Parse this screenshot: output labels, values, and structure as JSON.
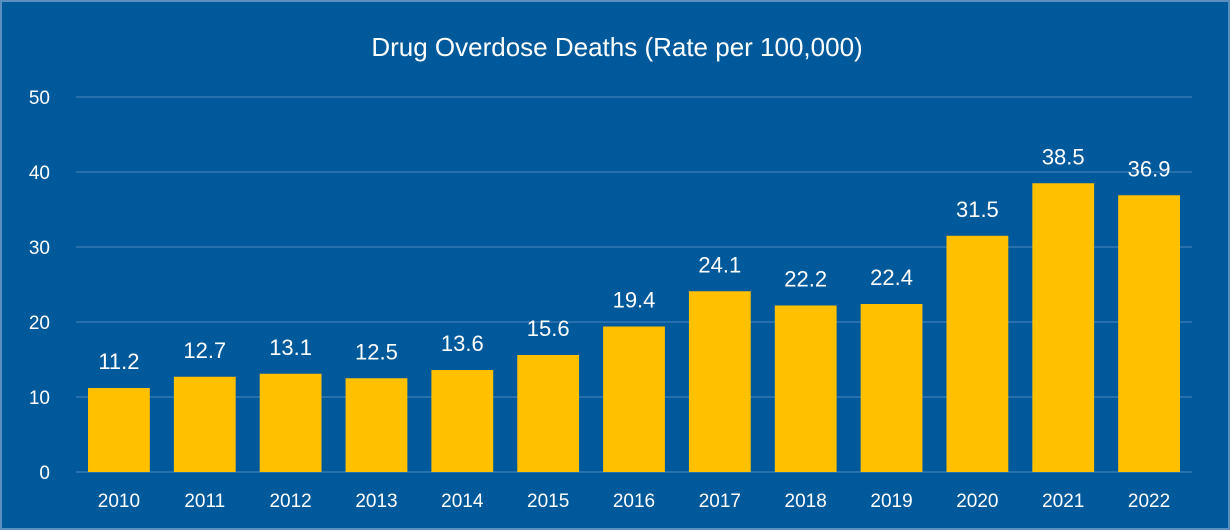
{
  "chart_data": {
    "type": "bar",
    "title": "Drug Overdose Deaths (Rate per 100,000)",
    "xlabel": "",
    "ylabel": "",
    "categories": [
      "2010",
      "2011",
      "2012",
      "2013",
      "2014",
      "2015",
      "2016",
      "2017",
      "2018",
      "2019",
      "2020",
      "2021",
      "2022"
    ],
    "values": [
      11.2,
      12.7,
      13.1,
      12.5,
      13.6,
      15.6,
      19.4,
      24.1,
      22.2,
      22.4,
      31.5,
      38.5,
      36.9
    ],
    "value_labels": [
      "11.2",
      "12.7",
      "13.1",
      "12.5",
      "13.6",
      "15.6",
      "19.4",
      "24.1",
      "22.2",
      "22.4",
      "31.5",
      "38.5",
      "36.9"
    ],
    "ylim": [
      0,
      50
    ],
    "yticks": [
      0,
      10,
      20,
      30,
      40,
      50
    ],
    "ytick_labels": [
      "0",
      "10",
      "20",
      "30",
      "40",
      "50"
    ],
    "grid": true,
    "legend": "none",
    "colors": {
      "background": "#00599a",
      "bar": "#ffc000",
      "gridline": "#4f88bd",
      "border": "#5b8fc0",
      "text": "#ffffff"
    }
  }
}
